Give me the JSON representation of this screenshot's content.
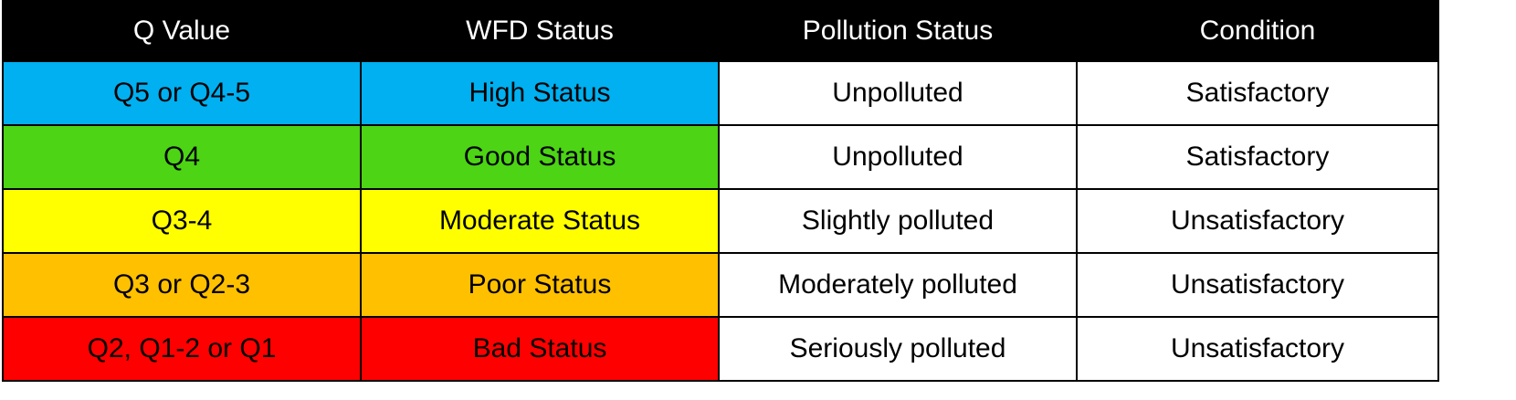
{
  "table": {
    "headers": [
      "Q Value",
      "WFD Status",
      "Pollution Status",
      "Condition"
    ],
    "rows": [
      {
        "q_value": "Q5 or Q4-5",
        "wfd_status": "High Status",
        "pollution_status": "Unpolluted",
        "condition": "Satisfactory",
        "status_color": "#00b0f0"
      },
      {
        "q_value": "Q4",
        "wfd_status": "Good Status",
        "pollution_status": "Unpolluted",
        "condition": "Satisfactory",
        "status_color": "#4cd415"
      },
      {
        "q_value": "Q3-4",
        "wfd_status": "Moderate Status",
        "pollution_status": "Slightly polluted",
        "condition": "Unsatisfactory",
        "status_color": "#ffff00"
      },
      {
        "q_value": "Q3 or Q2-3",
        "wfd_status": "Poor Status",
        "pollution_status": "Moderately polluted",
        "condition": "Unsatisfactory",
        "status_color": "#ffc000"
      },
      {
        "q_value": "Q2, Q1-2 or Q1",
        "wfd_status": "Bad Status",
        "pollution_status": "Seriously polluted",
        "condition": "Unsatisfactory",
        "status_color": "#ff0000"
      }
    ]
  },
  "colors": {
    "header_background": "#000000",
    "header_text": "#ffffff",
    "border": "#000000",
    "plain_cell_background": "#ffffff"
  }
}
